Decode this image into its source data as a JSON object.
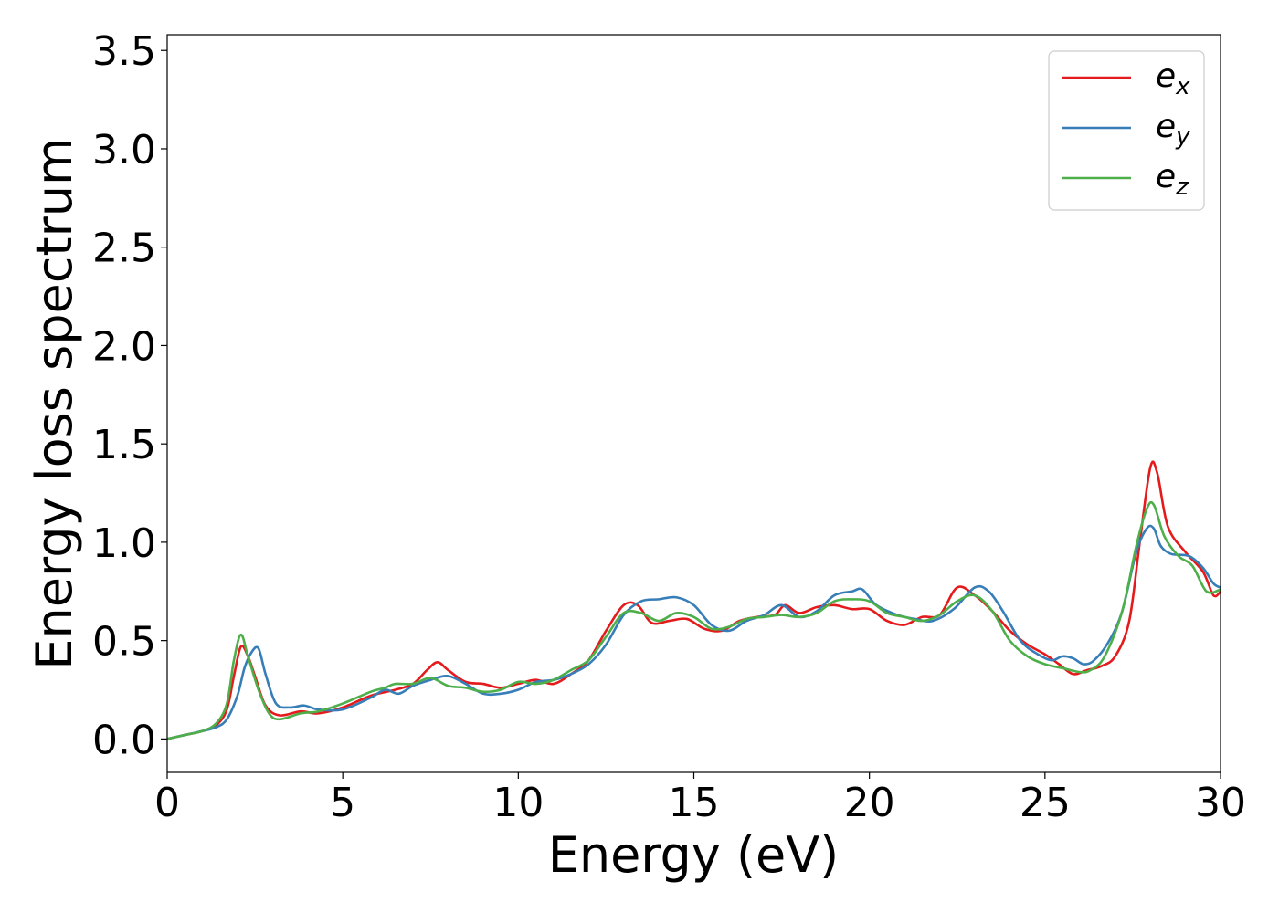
{
  "chart_data": {
    "type": "line",
    "title": "",
    "xlabel": "Energy (eV)",
    "ylabel": "Energy loss spectrum",
    "xlim": [
      0,
      30
    ],
    "ylim": [
      -0.17,
      3.58
    ],
    "xticks": [
      0,
      5,
      10,
      15,
      20,
      25,
      30
    ],
    "xtick_labels": [
      "0",
      "5",
      "10",
      "15",
      "20",
      "25",
      "30"
    ],
    "yticks": [
      0.0,
      0.5,
      1.0,
      1.5,
      2.0,
      2.5,
      3.0,
      3.5
    ],
    "ytick_labels": [
      "0.0",
      "0.5",
      "1.0",
      "1.5",
      "2.0",
      "2.5",
      "3.0",
      "3.5"
    ],
    "grid": false,
    "legend_position": "top-right",
    "series": [
      {
        "name": "e_x",
        "label_base": "e",
        "label_sub": "x",
        "color": "#e41a1c",
        "x": [
          0,
          0.5,
          1.0,
          1.4,
          1.7,
          1.9,
          2.1,
          2.3,
          2.5,
          2.8,
          3.2,
          3.8,
          4.3,
          5.0,
          5.8,
          6.5,
          7.0,
          7.4,
          7.7,
          8.0,
          8.5,
          9.0,
          9.5,
          10.0,
          10.5,
          11.0,
          11.5,
          12.0,
          12.5,
          13.0,
          13.4,
          13.8,
          14.3,
          14.8,
          15.3,
          15.8,
          16.3,
          16.8,
          17.3,
          17.6,
          18.0,
          18.5,
          19.0,
          19.5,
          20.0,
          20.5,
          21.0,
          21.5,
          22.0,
          22.5,
          23.0,
          23.5,
          24.0,
          24.5,
          25.0,
          25.4,
          25.8,
          26.2,
          26.6,
          27.0,
          27.4,
          27.7,
          28.0,
          28.2,
          28.5,
          29.0,
          29.5,
          29.8,
          30.0
        ],
        "y": [
          0.0,
          0.02,
          0.04,
          0.07,
          0.15,
          0.32,
          0.47,
          0.42,
          0.32,
          0.17,
          0.12,
          0.14,
          0.13,
          0.16,
          0.22,
          0.25,
          0.28,
          0.35,
          0.39,
          0.35,
          0.29,
          0.28,
          0.26,
          0.28,
          0.3,
          0.28,
          0.33,
          0.4,
          0.55,
          0.68,
          0.68,
          0.59,
          0.6,
          0.61,
          0.56,
          0.55,
          0.6,
          0.62,
          0.63,
          0.68,
          0.64,
          0.67,
          0.68,
          0.66,
          0.66,
          0.6,
          0.58,
          0.62,
          0.63,
          0.77,
          0.73,
          0.65,
          0.55,
          0.48,
          0.43,
          0.38,
          0.33,
          0.35,
          0.37,
          0.42,
          0.6,
          1.0,
          1.38,
          1.35,
          1.08,
          0.95,
          0.85,
          0.73,
          0.75
        ]
      },
      {
        "name": "e_y",
        "label_base": "e",
        "label_sub": "y",
        "color": "#377eb8",
        "x": [
          0,
          0.5,
          1.0,
          1.4,
          1.7,
          2.0,
          2.2,
          2.4,
          2.6,
          2.8,
          3.1,
          3.5,
          3.9,
          4.3,
          5.0,
          5.8,
          6.2,
          6.6,
          7.0,
          7.5,
          8.0,
          8.5,
          9.0,
          9.5,
          10.0,
          10.5,
          11.0,
          11.5,
          12.0,
          12.5,
          13.0,
          13.5,
          14.0,
          14.5,
          15.0,
          15.5,
          16.0,
          16.5,
          17.0,
          17.5,
          18.0,
          18.5,
          19.0,
          19.5,
          19.8,
          20.2,
          20.8,
          21.3,
          21.8,
          22.4,
          23.0,
          23.4,
          23.8,
          24.3,
          24.8,
          25.2,
          25.5,
          25.8,
          26.1,
          26.4,
          26.8,
          27.2,
          27.6,
          27.9,
          28.1,
          28.3,
          28.6,
          29.1,
          29.5,
          29.8,
          30.0
        ],
        "y": [
          0.0,
          0.02,
          0.04,
          0.06,
          0.1,
          0.22,
          0.36,
          0.44,
          0.46,
          0.33,
          0.18,
          0.16,
          0.17,
          0.15,
          0.15,
          0.21,
          0.25,
          0.23,
          0.27,
          0.3,
          0.32,
          0.28,
          0.23,
          0.23,
          0.25,
          0.29,
          0.3,
          0.33,
          0.38,
          0.48,
          0.63,
          0.7,
          0.71,
          0.72,
          0.68,
          0.58,
          0.55,
          0.6,
          0.63,
          0.68,
          0.62,
          0.65,
          0.73,
          0.75,
          0.76,
          0.68,
          0.63,
          0.61,
          0.6,
          0.66,
          0.77,
          0.75,
          0.65,
          0.5,
          0.43,
          0.4,
          0.42,
          0.41,
          0.38,
          0.4,
          0.49,
          0.65,
          0.95,
          1.07,
          1.07,
          0.98,
          0.94,
          0.93,
          0.87,
          0.79,
          0.77
        ]
      },
      {
        "name": "e_z",
        "label_base": "e",
        "label_sub": "z",
        "color": "#4daf4a",
        "x": [
          0,
          0.5,
          1.0,
          1.4,
          1.7,
          1.9,
          2.1,
          2.3,
          2.6,
          2.9,
          3.2,
          3.8,
          4.3,
          5.0,
          5.8,
          6.2,
          6.5,
          7.0,
          7.5,
          8.0,
          8.5,
          9.0,
          9.5,
          10.0,
          10.5,
          11.0,
          11.5,
          12.0,
          12.5,
          13.0,
          13.5,
          14.0,
          14.5,
          15.0,
          15.5,
          16.0,
          16.5,
          17.0,
          17.5,
          18.0,
          18.5,
          19.0,
          19.5,
          20.0,
          20.5,
          21.0,
          21.5,
          22.0,
          22.5,
          23.0,
          23.5,
          24.0,
          24.5,
          25.0,
          25.5,
          26.0,
          26.3,
          26.7,
          27.2,
          27.6,
          27.9,
          28.1,
          28.4,
          28.8,
          29.2,
          29.6,
          30.0
        ],
        "y": [
          0.0,
          0.02,
          0.04,
          0.08,
          0.18,
          0.4,
          0.53,
          0.42,
          0.25,
          0.13,
          0.1,
          0.13,
          0.14,
          0.18,
          0.24,
          0.26,
          0.28,
          0.28,
          0.31,
          0.27,
          0.26,
          0.24,
          0.25,
          0.29,
          0.28,
          0.3,
          0.35,
          0.4,
          0.52,
          0.64,
          0.64,
          0.6,
          0.64,
          0.62,
          0.56,
          0.57,
          0.61,
          0.62,
          0.63,
          0.62,
          0.64,
          0.7,
          0.71,
          0.7,
          0.64,
          0.62,
          0.6,
          0.63,
          0.7,
          0.73,
          0.65,
          0.5,
          0.42,
          0.38,
          0.36,
          0.34,
          0.35,
          0.42,
          0.65,
          0.98,
          1.17,
          1.19,
          1.03,
          0.93,
          0.88,
          0.75,
          0.76
        ]
      }
    ]
  }
}
